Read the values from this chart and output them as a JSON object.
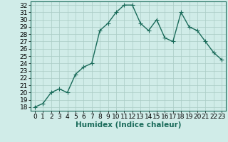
{
  "x": [
    0,
    1,
    2,
    3,
    4,
    5,
    6,
    7,
    8,
    9,
    10,
    11,
    12,
    13,
    14,
    15,
    16,
    17,
    18,
    19,
    20,
    21,
    22,
    23
  ],
  "y": [
    18,
    18.5,
    20,
    20.5,
    20,
    22.5,
    23.5,
    24,
    28.5,
    29.5,
    31,
    32,
    32,
    29.5,
    28.5,
    30,
    27.5,
    27,
    31,
    29,
    28.5,
    27,
    25.5,
    24.5
  ],
  "line_color": "#1a6b5a",
  "marker_color": "#1a6b5a",
  "bg_color": "#d0ece8",
  "grid_color": "#aaccc5",
  "xlabel": "Humidex (Indice chaleur)",
  "ylim": [
    17.5,
    32.5
  ],
  "xlim": [
    -0.5,
    23.5
  ],
  "yticks": [
    18,
    19,
    20,
    21,
    22,
    23,
    24,
    25,
    26,
    27,
    28,
    29,
    30,
    31,
    32
  ],
  "xticks": [
    0,
    1,
    2,
    3,
    4,
    5,
    6,
    7,
    8,
    9,
    10,
    11,
    12,
    13,
    14,
    15,
    16,
    17,
    18,
    19,
    20,
    21,
    22,
    23
  ],
  "tick_fontsize": 6.5,
  "xlabel_fontsize": 7.5,
  "linewidth": 1.0,
  "markersize": 2.5
}
